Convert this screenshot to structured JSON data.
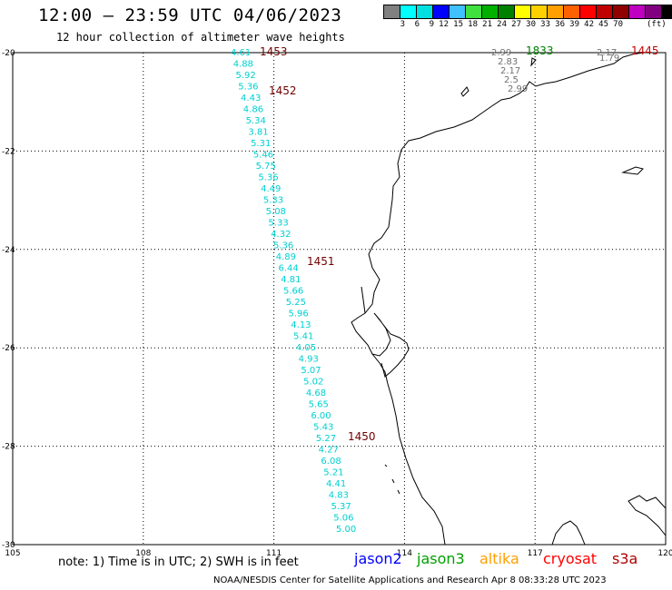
{
  "title": "12:00 — 23:59 UTC 04/06/2023",
  "subtitle": "12 hour collection of altimeter wave heights",
  "colorbar": {
    "colors": [
      "#808080",
      "#00ffff",
      "#00e0e0",
      "#0000ff",
      "#40c0ff",
      "#40e040",
      "#00b000",
      "#008000",
      "#ffff00",
      "#ffd000",
      "#ffa000",
      "#ff6000",
      "#ff0000",
      "#c00000",
      "#900000",
      "#c000c0",
      "#800080",
      "#000000"
    ],
    "labels": [
      "3",
      "6",
      "9",
      "12",
      "15",
      "18",
      "21",
      "24",
      "27",
      "30",
      "33",
      "36",
      "39",
      "42",
      "45",
      "70"
    ],
    "unit": "(ft)"
  },
  "axes": {
    "lon_ticks": [
      "105",
      "108",
      "111",
      "114",
      "117",
      "120"
    ],
    "lat_ticks": [
      "-20",
      "-22",
      "-24",
      "-26",
      "-28",
      "-30"
    ],
    "lon_range": [
      105,
      120
    ],
    "lat_range": [
      -30,
      -20
    ]
  },
  "track_cyan": [
    "4.61",
    "4.88",
    "5.92",
    "5.36",
    "4.43",
    "4.86",
    "5.34",
    "3.81",
    "5.31",
    "5.46",
    "5.75",
    "5.36",
    "4.49",
    "5.33",
    "5.08",
    "5.33",
    "4.32",
    "5.36",
    "4.89",
    "6.44",
    "4.81",
    "5.66",
    "5.25",
    "5.96",
    "4.13",
    "5.41",
    "4.05",
    "4.93",
    "5.07",
    "5.02",
    "4.68",
    "5.65",
    "6.00",
    "5.43",
    "5.27",
    "4.27",
    "6.08",
    "5.21",
    "4.41",
    "4.83",
    "5.37",
    "5.06",
    "5.00"
  ],
  "time_labels": [
    "1453",
    "1452",
    "1451",
    "1450"
  ],
  "grey_cluster": [
    "2.99",
    "2.83",
    "2.17",
    "2.5",
    "2.99"
  ],
  "jason3_time": "1833",
  "grey_right": [
    "2.17",
    "1.79"
  ],
  "s3a_time": "1445",
  "note": "note: 1) Time is in UTC; 2) SWH is in feet",
  "satellites": {
    "jason2": {
      "label": "jason2",
      "color": "#0000ff"
    },
    "jason3": {
      "label": "jason3",
      "color": "#00a000"
    },
    "altika": {
      "label": "altika",
      "color": "#ffa000"
    },
    "cryosat": {
      "label": "cryosat",
      "color": "#ff0000"
    },
    "s3a": {
      "label": "s3a",
      "color": "#b00000"
    }
  },
  "credit": "NOAA/NESDIS Center for Satellite Applications and Research   Apr  8 08:33:28 UTC 2023"
}
